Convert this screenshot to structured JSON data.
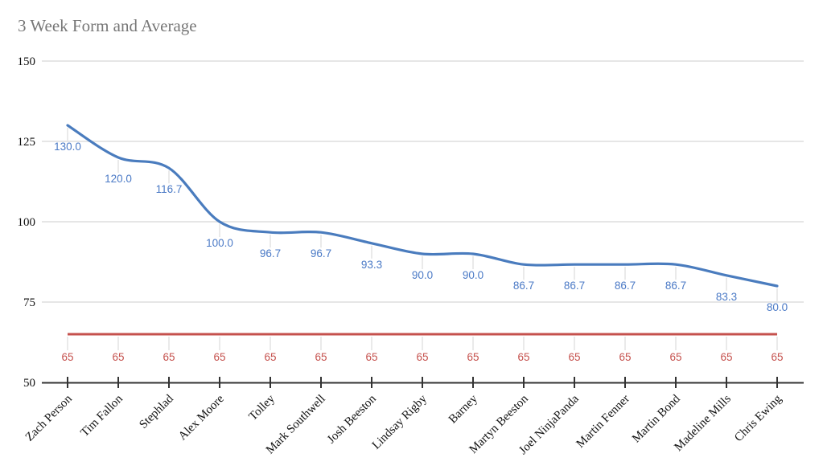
{
  "title": "3 Week Form and Average",
  "colors": {
    "form_line": "#4a7cbe",
    "form_label": "#4b7ac6",
    "average_line": "#c5514d",
    "average_label": "#c5514d",
    "grid": "#e6e6e6",
    "stem": "#e3e3e3",
    "axis": "#333333",
    "tick_text": "#111111",
    "title_text": "#777777",
    "background": "#ffffff"
  },
  "chart_data": {
    "type": "line",
    "title": "3 Week Form and Average",
    "categories": [
      "Zach Person",
      "Tim Fallon",
      "Stephlad",
      "Alex Moore",
      "Tolley",
      "Mark Southwell",
      "Josh Beeston",
      "Lindsay Rigby",
      "Barney",
      "Martyn Beeston",
      "Joel NinjaPanda",
      "Martin Fenner",
      "Martin Bond",
      "Madeline Mills",
      "Chris Ewing"
    ],
    "series": [
      {
        "key": "form",
        "values": [
          130.0,
          120.0,
          116.7,
          100.0,
          96.7,
          96.7,
          93.3,
          90.0,
          90.0,
          86.7,
          86.7,
          86.7,
          86.7,
          83.3,
          80.0
        ],
        "labels": [
          "130.0",
          "120.0",
          "116.7",
          "100.0",
          "96.7",
          "96.7",
          "93.3",
          "90.0",
          "90.0",
          "86.7",
          "86.7",
          "86.7",
          "86.7",
          "83.3",
          "80.0"
        ],
        "smooth": true
      },
      {
        "key": "average",
        "values": [
          65,
          65,
          65,
          65,
          65,
          65,
          65,
          65,
          65,
          65,
          65,
          65,
          65,
          65,
          65
        ],
        "labels": [
          "65",
          "65",
          "65",
          "65",
          "65",
          "65",
          "65",
          "65",
          "65",
          "65",
          "65",
          "65",
          "65",
          "65",
          "65"
        ],
        "smooth": false
      }
    ],
    "xlabel": "",
    "ylabel": "",
    "ylim": [
      50,
      150
    ],
    "yticks": [
      50,
      75,
      100,
      125,
      150
    ],
    "grid": true,
    "legend_position": "none"
  }
}
